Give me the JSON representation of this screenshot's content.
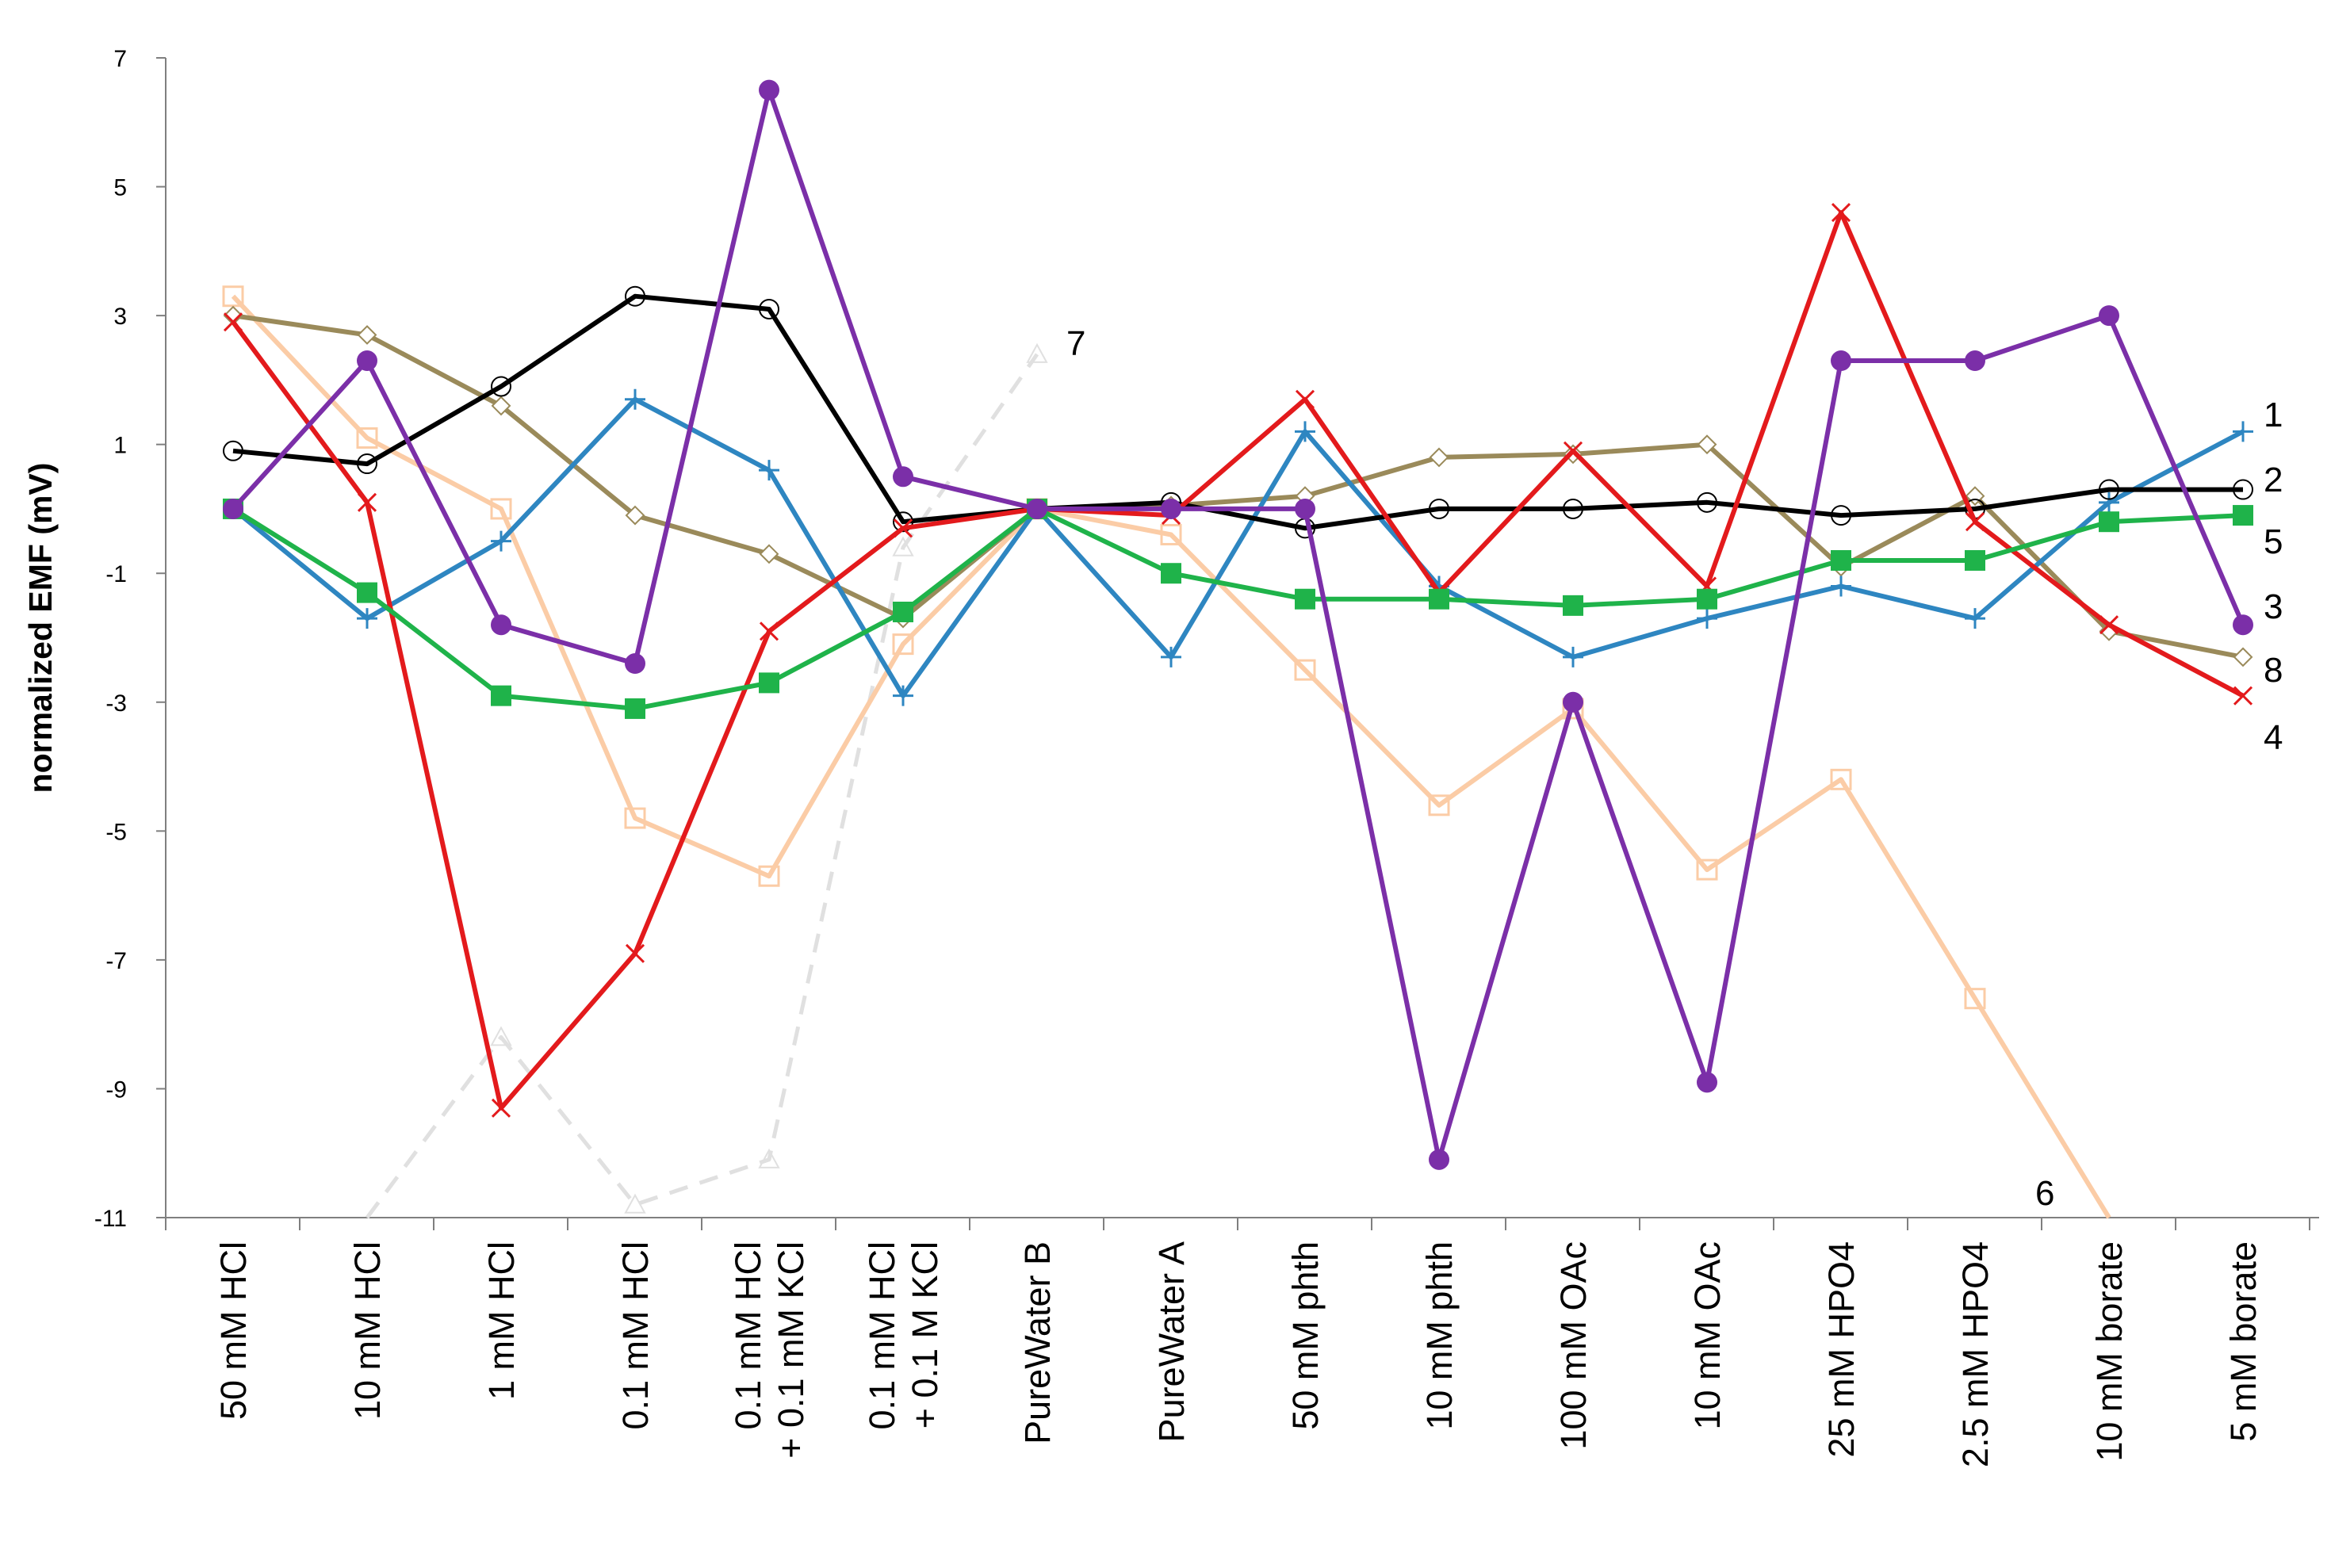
{
  "chart_data": {
    "type": "line",
    "ylabel": "normalized EMF (mV)",
    "xlabel": "",
    "ylim": [
      -11,
      7
    ],
    "yticks": [
      7,
      5,
      3,
      1,
      -1,
      -3,
      -5,
      -7,
      -9,
      -11
    ],
    "categories": [
      [
        "50 mM HCl"
      ],
      [
        "10 mM HCl"
      ],
      [
        "1 mM HCl"
      ],
      [
        "0.1 mM HCl"
      ],
      [
        "0.1 mM HCl",
        "+ 0.1 mM KCl"
      ],
      [
        "0.1 mM HCl",
        "+ 0.1 M KCl"
      ],
      [
        "PureWater B"
      ],
      [
        "PureWater A"
      ],
      [
        "50 mM phth"
      ],
      [
        "10 mM phth"
      ],
      [
        "100 mM OAc"
      ],
      [
        "10 mM OAc"
      ],
      [
        "25 mM HPO4"
      ],
      [
        "2.5 mM HPO4"
      ],
      [
        "10 mM borate"
      ],
      [
        "5 mM borate"
      ]
    ],
    "series": [
      {
        "name": "7",
        "label": "7",
        "color": "#e0e0e0",
        "marker": "triangle",
        "dashed": true,
        "values": [
          null,
          -11.0,
          -8.2,
          -10.8,
          -10.1,
          -0.6,
          2.4,
          null,
          null,
          null,
          null,
          null,
          null,
          null,
          null,
          null
        ]
      },
      {
        "name": "6",
        "label": "6",
        "color": "#fbcca6",
        "marker": "square-open",
        "values": [
          3.3,
          1.1,
          0.0,
          -4.8,
          -5.7,
          -2.1,
          0.0,
          -0.4,
          -2.5,
          -4.6,
          -3.1,
          -5.6,
          -4.2,
          -7.6,
          -11.0,
          null
        ]
      },
      {
        "name": "8",
        "label": "8",
        "color": "#9a8a5a",
        "marker": "diamond-open",
        "values": [
          3.0,
          2.7,
          1.6,
          -0.1,
          -0.7,
          -1.7,
          0.0,
          0.05,
          0.2,
          0.8,
          0.85,
          1.0,
          -0.9,
          0.2,
          -1.9,
          -2.3
        ]
      },
      {
        "name": "1",
        "label": "1",
        "color": "#2e86c1",
        "marker": "plus",
        "values": [
          0.0,
          -1.7,
          -0.5,
          1.7,
          0.6,
          -2.9,
          0.0,
          -2.3,
          1.2,
          -1.2,
          -2.3,
          -1.7,
          -1.2,
          -1.7,
          0.1,
          1.2
        ]
      },
      {
        "name": "2",
        "label": "2",
        "color": "#000000",
        "marker": "circle-open",
        "values": [
          0.9,
          0.7,
          1.9,
          3.3,
          3.1,
          -0.2,
          0.0,
          0.1,
          -0.3,
          0.0,
          0.0,
          0.1,
          -0.1,
          0.0,
          0.3,
          0.3
        ]
      },
      {
        "name": "4",
        "label": "4",
        "color": "#e31a1c",
        "marker": "x",
        "values": [
          2.9,
          0.1,
          -9.3,
          -6.9,
          -1.9,
          -0.3,
          0.0,
          -0.1,
          1.7,
          -1.3,
          0.9,
          -1.2,
          4.6,
          -0.2,
          -1.8,
          -2.9
        ]
      },
      {
        "name": "5",
        "label": "5",
        "color": "#1fb34a",
        "marker": "square-filled",
        "values": [
          0.0,
          -1.3,
          -2.9,
          -3.1,
          -2.7,
          -1.6,
          0.0,
          -1.0,
          -1.4,
          -1.4,
          -1.5,
          -1.4,
          -0.8,
          -0.8,
          -0.2,
          -0.1
        ]
      },
      {
        "name": "3",
        "label": "3",
        "color": "#7b2fa8",
        "marker": "circle-filled",
        "values": [
          0.0,
          2.3,
          -1.8,
          -2.4,
          6.5,
          0.5,
          0.0,
          0.0,
          0.0,
          -10.1,
          -3.0,
          -8.9,
          2.3,
          2.3,
          3.0,
          -1.8
        ]
      }
    ]
  }
}
